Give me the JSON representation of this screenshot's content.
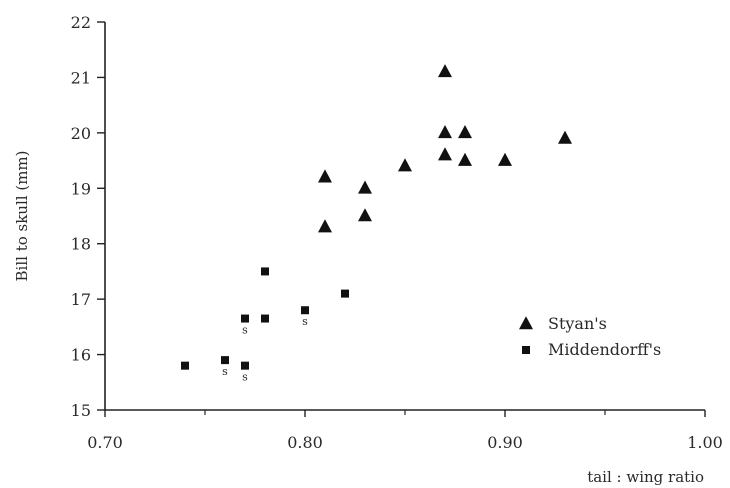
{
  "chart_data": {
    "type": "scatter",
    "title": "",
    "xlabel": "tail : wing ratio",
    "ylabel": "Bill to skull (mm)",
    "xlim": [
      0.7,
      1.0
    ],
    "ylim": [
      15,
      22
    ],
    "x_ticks": [
      "0.70",
      "0.80",
      "0.90",
      "1.00"
    ],
    "y_ticks": [
      "15",
      "16",
      "17",
      "18",
      "19",
      "20",
      "21",
      "22"
    ],
    "grid": false,
    "legend_position": "right",
    "series": [
      {
        "name": "Styan's",
        "marker": "triangle",
        "color": "#111111",
        "points": [
          {
            "x": 0.81,
            "y": 19.2
          },
          {
            "x": 0.81,
            "y": 18.3
          },
          {
            "x": 0.83,
            "y": 19.0
          },
          {
            "x": 0.83,
            "y": 18.5
          },
          {
            "x": 0.85,
            "y": 19.4
          },
          {
            "x": 0.87,
            "y": 21.1
          },
          {
            "x": 0.87,
            "y": 20.0
          },
          {
            "x": 0.87,
            "y": 19.6
          },
          {
            "x": 0.88,
            "y": 20.0
          },
          {
            "x": 0.88,
            "y": 19.5
          },
          {
            "x": 0.9,
            "y": 19.5
          },
          {
            "x": 0.93,
            "y": 19.9
          }
        ]
      },
      {
        "name": "Middendorff's",
        "marker": "square",
        "color": "#111111",
        "points": [
          {
            "x": 0.74,
            "y": 15.8,
            "label": ""
          },
          {
            "x": 0.76,
            "y": 15.9,
            "label": "s"
          },
          {
            "x": 0.77,
            "y": 15.8,
            "label": "s"
          },
          {
            "x": 0.77,
            "y": 16.65,
            "label": "s"
          },
          {
            "x": 0.78,
            "y": 17.5,
            "label": ""
          },
          {
            "x": 0.78,
            "y": 16.65,
            "label": ""
          },
          {
            "x": 0.8,
            "y": 16.8,
            "label": "s"
          },
          {
            "x": 0.82,
            "y": 17.1,
            "label": ""
          }
        ]
      }
    ]
  }
}
